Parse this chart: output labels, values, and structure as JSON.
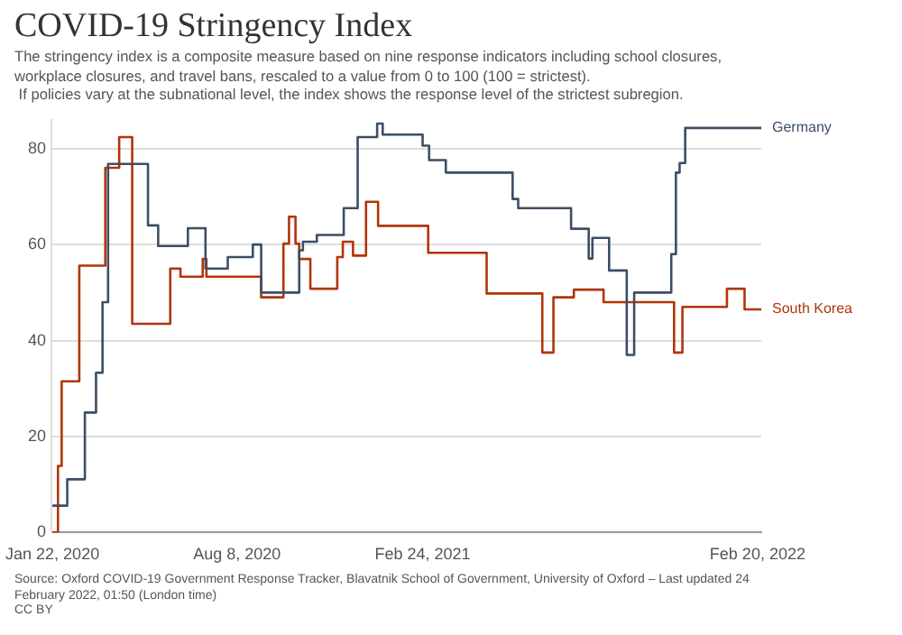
{
  "chart_data": {
    "type": "step",
    "title": "COVID-19 Stringency Index",
    "subtitle": "The stringency index is a composite measure based on nine response indicators including school closures,\nworkplace closures, and travel bans, rescaled to a value from 0 to 100 (100 = strictest).\n If policies vary at the subnational level, the index shows the response level of the strictest subregion.",
    "annotations": [
      "Source: Oxford COVID-19 Government Response Tracker, Blavatnik School of Government, University of Oxford – Last updated 24 February 2022, 01:50 (London time)",
      "CC BY"
    ],
    "xlim": [
      "2020-01-21",
      "2022-02-24"
    ],
    "xticks": [
      {
        "value": "2020-01-22",
        "label": "Jan 22, 2020"
      },
      {
        "value": "2020-08-08",
        "label": "Aug 8, 2020"
      },
      {
        "value": "2021-02-24",
        "label": "Feb 24, 2021"
      },
      {
        "value": "2022-02-20",
        "label": "Feb 20, 2022"
      }
    ],
    "ylim": [
      0,
      86
    ],
    "yticks": [
      0,
      20,
      40,
      60,
      80
    ],
    "grid": "y",
    "legend": false,
    "marker": "none",
    "line_style": "solid",
    "series": [
      {
        "name": "Germany",
        "color": "#3c4e66",
        "x": [
          "2020-01-22",
          "2020-02-07",
          "2020-02-26",
          "2020-03-09",
          "2020-03-16",
          "2020-03-22",
          "2020-05-04",
          "2020-05-15",
          "2020-06-16",
          "2020-07-05",
          "2020-07-29",
          "2020-08-25",
          "2020-09-03",
          "2020-10-14",
          "2020-10-18",
          "2020-11-02",
          "2020-12-01",
          "2020-12-16",
          "2021-01-06",
          "2021-01-12",
          "2021-02-24",
          "2021-03-03",
          "2021-03-21",
          "2021-06-01",
          "2021-06-07",
          "2021-08-03",
          "2021-08-22",
          "2021-08-26",
          "2021-09-13",
          "2021-10-02",
          "2021-10-10",
          "2021-11-19",
          "2021-11-24",
          "2021-11-28",
          "2021-12-04",
          "2022-02-24"
        ],
        "values": [
          5.6,
          11.1,
          25,
          33.3,
          48,
          76.8,
          64,
          59.7,
          63.4,
          55,
          57.4,
          60,
          50,
          58.8,
          60.6,
          62,
          67.6,
          82.4,
          85.2,
          82.9,
          80.6,
          77.6,
          75,
          69.5,
          67.6,
          63.3,
          57.1,
          61.4,
          54.6,
          37,
          50,
          58,
          75,
          77,
          84.3,
          84.3
        ]
      },
      {
        "name": "South Korea",
        "color": "#b13507",
        "x": [
          "2020-01-22",
          "2020-01-28",
          "2020-02-01",
          "2020-02-20",
          "2020-03-19",
          "2020-04-03",
          "2020-04-17",
          "2020-05-28",
          "2020-06-08",
          "2020-07-02",
          "2020-07-06",
          "2020-09-03",
          "2020-09-27",
          "2020-10-03",
          "2020-10-10",
          "2020-10-14",
          "2020-10-26",
          "2020-11-24",
          "2020-11-30",
          "2020-12-11",
          "2020-12-25",
          "2021-01-07",
          "2021-03-02",
          "2021-05-04",
          "2021-07-03",
          "2021-07-15",
          "2021-08-06",
          "2021-09-07",
          "2021-11-22",
          "2021-12-01",
          "2022-01-18",
          "2022-02-06",
          "2022-02-24"
        ],
        "values": [
          0,
          13.9,
          31.5,
          55.6,
          76,
          82.4,
          43.5,
          55,
          53.3,
          57,
          53.3,
          49,
          60.2,
          65.8,
          60.2,
          57,
          50.8,
          57.4,
          60.6,
          57.7,
          68.9,
          63.9,
          58.3,
          49.8,
          37.5,
          49,
          50.6,
          48,
          37.5,
          47,
          50.8,
          46.5,
          46.5
        ]
      }
    ]
  }
}
